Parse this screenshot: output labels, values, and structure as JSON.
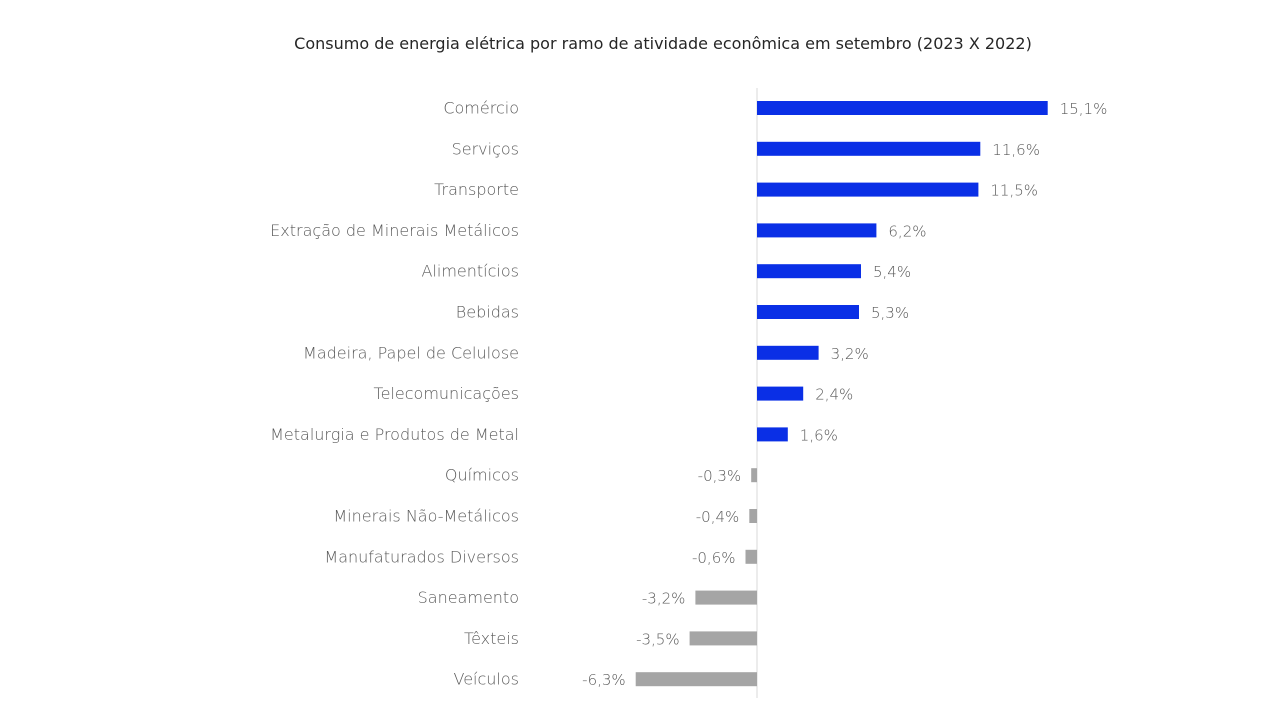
{
  "chart_data": {
    "type": "bar",
    "orientation": "horizontal",
    "title": "Consumo de energia elétrica por ramo de atividade econômica em setembro (2023 X 2022)",
    "categories": [
      "Comércio",
      "Serviços",
      "Transporte",
      "Extração de Minerais Metálicos",
      "Alimentícios",
      "Bebidas",
      "Madeira, Papel de Celulose",
      "Telecomunicações",
      "Metalurgia e Produtos de Metal",
      "Químicos",
      "Minerais Não-Metálicos",
      "Manufaturados Diversos",
      "Saneamento",
      "Têxteis",
      "Veículos"
    ],
    "values": [
      15.1,
      11.6,
      11.5,
      6.2,
      5.4,
      5.3,
      3.2,
      2.4,
      1.6,
      -0.3,
      -0.4,
      -0.6,
      -3.2,
      -3.5,
      -6.3
    ],
    "value_labels": [
      "15,1%",
      "11,6%",
      "11,5%",
      "6,2%",
      "5,4%",
      "5,3%",
      "3,2%",
      "2,4%",
      "1,6%",
      "-0,3%",
      "-0,4%",
      "-0,6%",
      "-3,2%",
      "-3,5%",
      "-6,3%"
    ],
    "unit": "%",
    "colors": {
      "positive": "#0a2fe6",
      "negative": "#a5a5a5",
      "axis": "#d9d9d9"
    },
    "xlim": [
      -6.3,
      15.1
    ],
    "grid": false,
    "legend": "none"
  }
}
